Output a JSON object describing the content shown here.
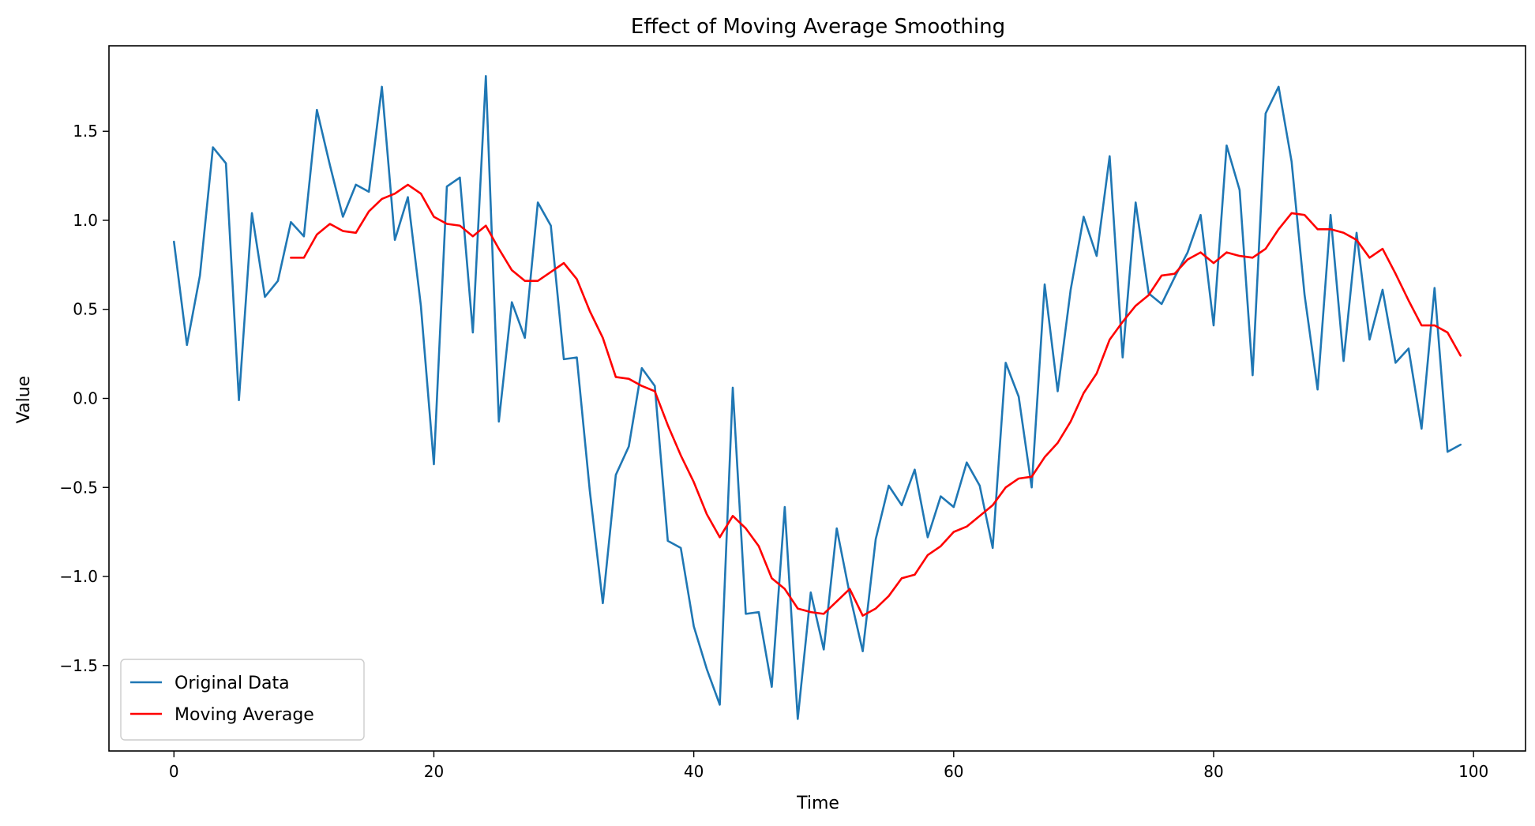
{
  "chart_data": {
    "type": "line",
    "title": "Effect of Moving Average Smoothing",
    "xlabel": "Time",
    "ylabel": "Value",
    "xlim": [
      -5,
      104
    ],
    "ylim": [
      -1.98,
      1.98
    ],
    "xticks": [
      0,
      20,
      40,
      60,
      80,
      100
    ],
    "yticks": [
      -1.5,
      -1.0,
      -0.5,
      0.0,
      0.5,
      1.0,
      1.5
    ],
    "ytick_labels": [
      "−1.5",
      "−1.0",
      "−0.5",
      "0.0",
      "0.5",
      "1.0",
      "1.5"
    ],
    "grid": false,
    "legend_position": "lower-left",
    "series": [
      {
        "name": "Original Data",
        "color": "#1f77b4",
        "x_start": 0,
        "values": [
          0.88,
          0.3,
          0.69,
          1.41,
          1.32,
          -0.01,
          1.04,
          0.57,
          0.66,
          0.99,
          0.91,
          1.62,
          1.31,
          1.02,
          1.2,
          1.16,
          1.75,
          0.89,
          1.13,
          0.52,
          -0.37,
          1.19,
          1.24,
          0.37,
          1.81,
          -0.13,
          0.54,
          0.34,
          1.1,
          0.97,
          0.22,
          0.23,
          -0.52,
          -1.15,
          -0.43,
          -0.27,
          0.17,
          0.07,
          -0.8,
          -0.84,
          -1.28,
          -1.52,
          -1.72,
          0.06,
          -1.21,
          -1.2,
          -1.62,
          -0.61,
          -1.8,
          -1.09,
          -1.41,
          -0.73,
          -1.1,
          -1.42,
          -0.79,
          -0.49,
          -0.6,
          -0.4,
          -0.78,
          -0.55,
          -0.61,
          -0.36,
          -0.49,
          -0.84,
          0.2,
          0.01,
          -0.5,
          0.64,
          0.04,
          0.61,
          1.02,
          0.8,
          1.36,
          0.23,
          1.1,
          0.59,
          0.53,
          0.68,
          0.82,
          1.03,
          0.41,
          1.42,
          1.17,
          0.13,
          1.6,
          1.75,
          1.33,
          0.58,
          0.05,
          1.03,
          0.21,
          0.93,
          0.33,
          0.61,
          0.2,
          0.28,
          -0.17,
          0.62,
          -0.3,
          -0.26
        ]
      },
      {
        "name": "Moving Average",
        "color": "#ff0000",
        "x_start": 9,
        "values": [
          0.79,
          0.79,
          0.92,
          0.98,
          0.94,
          0.93,
          1.05,
          1.12,
          1.15,
          1.2,
          1.15,
          1.02,
          0.98,
          0.97,
          0.91,
          0.97,
          0.84,
          0.72,
          0.66,
          0.66,
          0.71,
          0.76,
          0.67,
          0.49,
          0.34,
          0.12,
          0.11,
          0.07,
          0.04,
          -0.15,
          -0.32,
          -0.47,
          -0.65,
          -0.78,
          -0.66,
          -0.73,
          -0.83,
          -1.01,
          -1.07,
          -1.18,
          -1.2,
          -1.21,
          -1.14,
          -1.07,
          -1.22,
          -1.18,
          -1.11,
          -1.01,
          -0.99,
          -0.88,
          -0.83,
          -0.75,
          -0.72,
          -0.66,
          -0.6,
          -0.5,
          -0.45,
          -0.44,
          -0.33,
          -0.25,
          -0.13,
          0.03,
          0.14,
          0.33,
          0.43,
          0.52,
          0.58,
          0.69,
          0.7,
          0.78,
          0.82,
          0.76,
          0.82,
          0.8,
          0.79,
          0.84,
          0.95,
          1.04,
          1.03,
          0.95,
          0.95,
          0.93,
          0.89,
          0.79,
          0.84,
          0.7,
          0.55,
          0.41,
          0.41,
          0.37,
          0.24
        ]
      }
    ]
  }
}
